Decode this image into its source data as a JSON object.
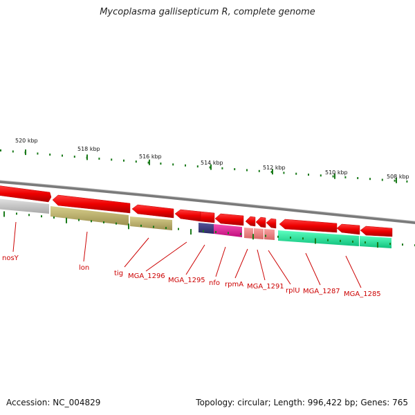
{
  "title": "Mycoplasma gallisepticum R, complete genome",
  "footer": {
    "accession": "Accession: NC_004829",
    "summary": "Topology: circular; Length: 996,422 bp; Genes: 765"
  },
  "scale": {
    "labels": [
      "520 kbp",
      "518 kbp",
      "516 kbp",
      "514 kbp",
      "512 kbp",
      "510 kbp",
      "508 kbp"
    ]
  },
  "gene_labels": [
    "nosY",
    "lon",
    "tig",
    "MGA_1296",
    "MGA_1295",
    "nfo",
    "rpmA",
    "MGA_1291",
    "rplU",
    "MGA_1287",
    "MGA_1285"
  ],
  "colors": {
    "forward_gene": "#ee0000",
    "backbone": "#808080",
    "tick": "#1a7a1a",
    "label": "#cc0000",
    "cog_gray": "#c8c8c8",
    "cog_olive": "#c2b66a",
    "cog_navy": "#3b3a7e",
    "cog_magenta": "#e8179a",
    "cog_salmon": "#f08080",
    "cog_teal": "#19ee99"
  }
}
